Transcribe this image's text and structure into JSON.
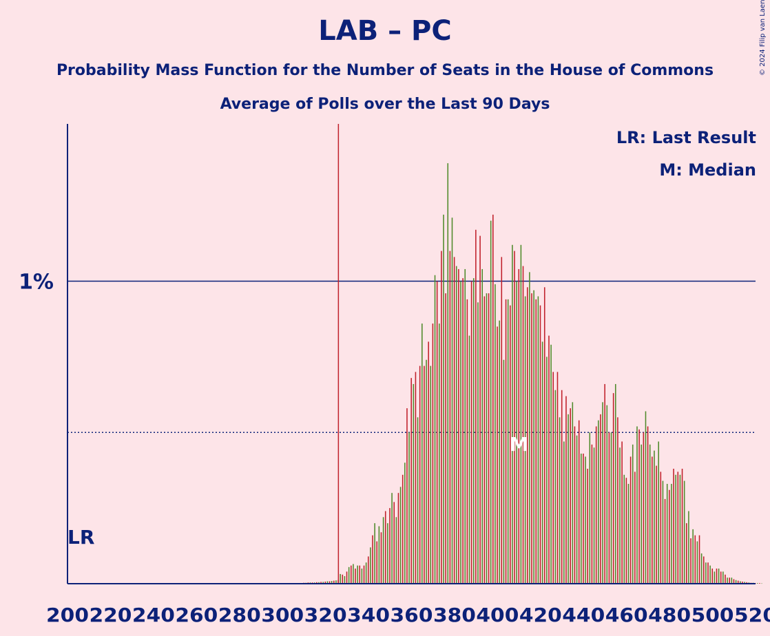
{
  "chart_data": {
    "type": "bar",
    "title": "LAB – PC",
    "subtitle": "Probability Mass Function for the Number of Seats in the House of Commons",
    "subtitle2": "Average of Polls over the Last 90 Days",
    "copyright": "© 2024 Filip van Laenen",
    "legend": [
      "LR: Last Result",
      "M: Median"
    ],
    "legend_placement": "top-right",
    "last_result_label": "LR",
    "median_label": "M",
    "last_result": 326,
    "median": 410,
    "y_tick_label": "1%",
    "y_tick_value": 1.0,
    "y_dotted_value": 0.5,
    "ylim": [
      0,
      1.52
    ],
    "x_ticks": [
      200,
      220,
      240,
      260,
      280,
      300,
      320,
      340,
      360,
      380,
      400,
      420,
      440,
      460,
      480,
      500,
      520
    ],
    "xlim": [
      200,
      520
    ],
    "series_colors": [
      "#c0202a",
      "#4f8a2a"
    ],
    "x_start": 310,
    "values": [
      0.003,
      0.003,
      0.004,
      0.004,
      0.004,
      0.004,
      0.005,
      0.005,
      0.006,
      0.006,
      0.007,
      0.008,
      0.008,
      0.009,
      0.01,
      0.011,
      0.012,
      0.032,
      0.03,
      0.025,
      0.04,
      0.055,
      0.06,
      0.065,
      0.05,
      0.06,
      0.06,
      0.05,
      0.06,
      0.07,
      0.09,
      0.12,
      0.16,
      0.2,
      0.14,
      0.19,
      0.17,
      0.22,
      0.24,
      0.2,
      0.25,
      0.3,
      0.27,
      0.22,
      0.3,
      0.32,
      0.36,
      0.4,
      0.58,
      0.5,
      0.68,
      0.66,
      0.7,
      0.55,
      0.72,
      0.86,
      0.72,
      0.74,
      0.8,
      0.72,
      0.86,
      1.02,
      1.0,
      0.86,
      1.1,
      1.22,
      0.96,
      1.39,
      1.1,
      1.21,
      1.08,
      1.05,
      1.04,
      1.0,
      1.01,
      1.04,
      0.94,
      0.82,
      1.0,
      1.01,
      1.17,
      0.93,
      1.15,
      1.04,
      0.95,
      0.96,
      0.96,
      1.2,
      1.22,
      0.99,
      0.85,
      0.87,
      1.08,
      0.74,
      0.94,
      0.94,
      0.92,
      1.12,
      1.1,
      1.0,
      1.04,
      1.12,
      1.05,
      0.95,
      0.98,
      1.03,
      0.96,
      0.97,
      0.94,
      0.95,
      0.92,
      0.8,
      0.98,
      0.75,
      0.82,
      0.79,
      0.7,
      0.64,
      0.7,
      0.55,
      0.64,
      0.47,
      0.62,
      0.56,
      0.58,
      0.6,
      0.52,
      0.49,
      0.54,
      0.43,
      0.43,
      0.42,
      0.38,
      0.5,
      0.46,
      0.45,
      0.52,
      0.54,
      0.56,
      0.6,
      0.66,
      0.59,
      0.5,
      0.5,
      0.63,
      0.66,
      0.55,
      0.45,
      0.47,
      0.36,
      0.35,
      0.33,
      0.42,
      0.46,
      0.37,
      0.52,
      0.51,
      0.46,
      0.5,
      0.57,
      0.52,
      0.46,
      0.42,
      0.44,
      0.39,
      0.47,
      0.37,
      0.34,
      0.28,
      0.33,
      0.31,
      0.33,
      0.38,
      0.36,
      0.37,
      0.36,
      0.38,
      0.34,
      0.2,
      0.24,
      0.15,
      0.18,
      0.16,
      0.14,
      0.16,
      0.1,
      0.09,
      0.07,
      0.07,
      0.06,
      0.05,
      0.04,
      0.05,
      0.05,
      0.04,
      0.04,
      0.03,
      0.02,
      0.02,
      0.02,
      0.015,
      0.012,
      0.01,
      0.008,
      0.007,
      0.006,
      0.005,
      0.004,
      0.003,
      0.003,
      0.002,
      0.002,
      0.002,
      0.001
    ]
  }
}
